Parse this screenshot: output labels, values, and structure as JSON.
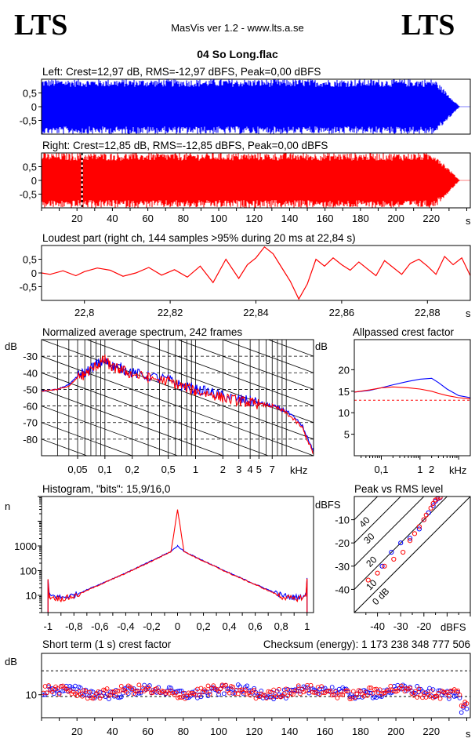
{
  "header": {
    "logo_left": "LTS",
    "logo_right": "LTS",
    "app_title": "MasVis ver 1.2 - www.lts.a.se",
    "file_name": "04 So Long.flac"
  },
  "colors": {
    "left": "#0000ff",
    "right": "#ff0000",
    "grid": "#000000",
    "bg": "#ffffff"
  },
  "chart_data": [
    {
      "id": "left-waveform",
      "type": "area",
      "title": "Left: Crest=12,97 dB, RMS=-12,97 dBFS, Peak=0,00 dBFS",
      "ylim": [
        -1,
        1
      ],
      "yticks": [
        "0.5",
        "0",
        "-0.5"
      ],
      "xlim": [
        0,
        242
      ],
      "color": "#0000ff",
      "envelope_peak": 1.0,
      "fade_out_start_s": 222,
      "fade_out_end_s": 236
    },
    {
      "id": "right-waveform",
      "type": "area",
      "title": "Right: Crest=12,85 dB, RMS=-12,85 dBFS, Peak=0,00 dBFS",
      "ylim": [
        -1,
        1
      ],
      "yticks": [
        "0.5",
        "0",
        "-0.5"
      ],
      "xlim": [
        0,
        242
      ],
      "xticks": [
        "20",
        "40",
        "60",
        "80",
        "100",
        "120",
        "140",
        "160",
        "180",
        "200",
        "220"
      ],
      "x_unit": "s",
      "color": "#ff0000",
      "marker_s": 22.84,
      "fade_out_start_s": 222,
      "fade_out_end_s": 236
    },
    {
      "id": "loudest-part",
      "type": "line",
      "title": "Loudest part (right ch, 144 samples >95% during 20 ms at 22,84 s)",
      "xlim": [
        22.79,
        22.89
      ],
      "xticks": [
        "22,8",
        "22,82",
        "22,84",
        "22,86",
        "22,88"
      ],
      "x_unit": "s",
      "ylim": [
        -1,
        1
      ],
      "yticks": [
        "0.5",
        "0",
        "-0.5"
      ],
      "color": "#ff0000",
      "points": [
        [
          22.79,
          0.0
        ],
        [
          22.792,
          -0.05
        ],
        [
          22.795,
          0.08
        ],
        [
          22.798,
          -0.1
        ],
        [
          22.8,
          0.05
        ],
        [
          22.803,
          0.18
        ],
        [
          22.806,
          0.1
        ],
        [
          22.809,
          -0.12
        ],
        [
          22.812,
          0.0
        ],
        [
          22.815,
          0.2
        ],
        [
          22.818,
          -0.08
        ],
        [
          22.821,
          0.12
        ],
        [
          22.824,
          -0.15
        ],
        [
          22.827,
          0.25
        ],
        [
          22.83,
          -0.35
        ],
        [
          22.833,
          0.5
        ],
        [
          22.836,
          -0.2
        ],
        [
          22.838,
          0.3
        ],
        [
          22.84,
          0.55
        ],
        [
          22.842,
          0.95
        ],
        [
          22.844,
          0.7
        ],
        [
          22.846,
          0.2
        ],
        [
          22.848,
          -0.3
        ],
        [
          22.85,
          -0.95
        ],
        [
          22.852,
          -0.4
        ],
        [
          22.854,
          0.5
        ],
        [
          22.856,
          0.25
        ],
        [
          22.858,
          0.55
        ],
        [
          22.86,
          0.3
        ],
        [
          22.862,
          0.1
        ],
        [
          22.864,
          0.4
        ],
        [
          22.866,
          0.15
        ],
        [
          22.868,
          -0.1
        ],
        [
          22.87,
          0.45
        ],
        [
          22.872,
          0.2
        ],
        [
          22.874,
          -0.05
        ],
        [
          22.876,
          0.35
        ],
        [
          22.878,
          0.5
        ],
        [
          22.88,
          0.25
        ],
        [
          22.882,
          -0.05
        ],
        [
          22.884,
          0.6
        ],
        [
          22.886,
          0.3
        ],
        [
          22.888,
          0.55
        ],
        [
          22.89,
          -0.1
        ]
      ]
    },
    {
      "id": "avg-spectrum",
      "type": "line",
      "title": "Normalized average spectrum, 242 frames",
      "ylabel": "dB",
      "x_unit": "kHz",
      "x_scale": "log",
      "xlim": [
        0.02,
        20
      ],
      "ylim": [
        -90,
        -20
      ],
      "yticks": [
        "-30",
        "-40",
        "-50",
        "-60",
        "-70",
        "-80"
      ],
      "xticks": [
        "0,05",
        "0,1",
        "0,2",
        "0,5",
        "1",
        "2",
        "3",
        "4",
        "5",
        "7"
      ],
      "series": [
        {
          "color": "#0000ff",
          "x": [
            0.02,
            0.03,
            0.04,
            0.05,
            0.06,
            0.08,
            0.1,
            0.12,
            0.15,
            0.2,
            0.3,
            0.5,
            0.7,
            1,
            1.5,
            2,
            3,
            4,
            5,
            7,
            10,
            15,
            20
          ],
          "y": [
            -51,
            -50,
            -47,
            -42,
            -40,
            -35,
            -33,
            -36,
            -37,
            -40,
            -42,
            -44,
            -48,
            -50,
            -52,
            -54,
            -56,
            -57,
            -58,
            -60,
            -63,
            -72,
            -88
          ]
        },
        {
          "color": "#ff0000",
          "x": [
            0.02,
            0.03,
            0.04,
            0.05,
            0.06,
            0.08,
            0.1,
            0.12,
            0.15,
            0.2,
            0.3,
            0.5,
            0.7,
            1,
            1.5,
            2,
            3,
            4,
            5,
            7,
            10,
            15,
            20
          ],
          "y": [
            -51,
            -50,
            -48,
            -43,
            -41,
            -36,
            -32,
            -37,
            -38,
            -41,
            -43,
            -45,
            -48,
            -51,
            -53,
            -55,
            -57,
            -58,
            -59,
            -60,
            -64,
            -73,
            -89
          ]
        }
      ]
    },
    {
      "id": "allpass-crest",
      "type": "line",
      "title": "Allpassed crest factor",
      "ylabel": "dB",
      "x_unit": "kHz",
      "x_scale": "log",
      "xlim": [
        0.02,
        20
      ],
      "ylim": [
        0,
        27
      ],
      "yticks": [
        "20",
        "15",
        "10",
        "5"
      ],
      "xticks": [
        "0,1",
        "1",
        "2"
      ],
      "reference_db": 12.9,
      "series": [
        {
          "color": "#0000ff",
          "x": [
            0.02,
            0.05,
            0.1,
            0.2,
            0.5,
            1,
            2,
            3,
            5,
            10,
            20
          ],
          "y": [
            14.8,
            15.2,
            15.8,
            16.5,
            17.3,
            17.8,
            18.0,
            17.0,
            15.5,
            14.0,
            13.5
          ]
        },
        {
          "color": "#ff0000",
          "x": [
            0.02,
            0.05,
            0.1,
            0.2,
            0.5,
            1,
            2,
            3,
            5,
            10,
            20
          ],
          "y": [
            14.8,
            15.3,
            15.8,
            16.0,
            15.8,
            15.5,
            15.0,
            14.5,
            14.0,
            13.5,
            13.2
          ]
        }
      ]
    },
    {
      "id": "histogram",
      "type": "line",
      "title": "Histogram, \"bits\": 15,9/16,0",
      "ylabel": "n",
      "y_scale": "log",
      "xlim": [
        -1.05,
        1.05
      ],
      "ylim": [
        2,
        100000
      ],
      "xticks": [
        "-1",
        "-0,8",
        "-0,6",
        "-0,4",
        "-0,2",
        "0",
        "0,2",
        "0,4",
        "0,6",
        "0,8",
        "1"
      ],
      "yticks": [
        "1000",
        "100",
        "10"
      ],
      "series": [
        {
          "color": "#0000ff",
          "x": [
            -1,
            -0.99,
            -0.9,
            -0.8,
            -0.6,
            -0.4,
            -0.2,
            -0.05,
            0,
            0.05,
            0.2,
            0.4,
            0.6,
            0.8,
            0.9,
            0.99,
            1
          ],
          "y": [
            40,
            10,
            8,
            10,
            28,
            80,
            250,
            600,
            1000,
            600,
            250,
            80,
            28,
            10,
            8,
            10,
            40
          ]
        },
        {
          "color": "#ff0000",
          "x": [
            -1,
            -0.99,
            -0.9,
            -0.8,
            -0.6,
            -0.4,
            -0.2,
            -0.05,
            0,
            0.05,
            0.2,
            0.4,
            0.6,
            0.8,
            0.9,
            0.99,
            1
          ],
          "y": [
            45,
            9,
            7,
            9,
            27,
            78,
            240,
            590,
            30000,
            590,
            240,
            78,
            27,
            9,
            7,
            9,
            45
          ]
        }
      ]
    },
    {
      "id": "peak-vs-rms",
      "type": "scatter",
      "title": "Peak vs RMS level",
      "ylabel": "dBFS",
      "x_unit": "dBFS",
      "xlim": [
        -50,
        0
      ],
      "ylim": [
        -50,
        0
      ],
      "xticks": [
        "-40",
        "-30",
        "-20"
      ],
      "yticks": [
        "-10",
        "-20",
        "-30",
        "-40"
      ],
      "diagonals": [
        "40",
        "30",
        "20",
        "10",
        "0 dB"
      ],
      "series": [
        {
          "color": "#0000ff",
          "points": [
            [
              -38,
              -30
            ],
            [
              -34,
              -24
            ],
            [
              -30,
              -20
            ],
            [
              -26,
              -18
            ],
            [
              -22,
              -14
            ],
            [
              -20,
              -10
            ],
            [
              -18,
              -7
            ],
            [
              -16,
              -4
            ],
            [
              -15,
              -2
            ],
            [
              -14,
              -1
            ],
            [
              -13,
              -0.5
            ]
          ]
        },
        {
          "color": "#ff0000",
          "points": [
            [
              -44,
              -36
            ],
            [
              -40,
              -33
            ],
            [
              -37,
              -30
            ],
            [
              -33,
              -27
            ],
            [
              -29,
              -24
            ],
            [
              -26,
              -19
            ],
            [
              -24,
              -16
            ],
            [
              -22,
              -13
            ],
            [
              -20,
              -10
            ],
            [
              -19,
              -8
            ],
            [
              -17,
              -5
            ],
            [
              -16,
              -3
            ],
            [
              -15,
              -1.5
            ],
            [
              -14,
              -0.8
            ],
            [
              -13,
              -0.3
            ]
          ]
        }
      ]
    },
    {
      "id": "short-term-crest",
      "type": "scatter",
      "title": "Short term (1 s) crest factor",
      "checksum": "Checksum (energy):  1 173 238 348 777 506",
      "ylabel": "dB",
      "xlim": [
        0,
        242
      ],
      "ylim": [
        5,
        19
      ],
      "yticks": [
        "10"
      ],
      "ref_lines": [
        15.2,
        9.6
      ],
      "xticks": [
        "20",
        "40",
        "60",
        "80",
        "100",
        "120",
        "140",
        "160",
        "180",
        "200",
        "220"
      ],
      "x_unit": "s"
    }
  ]
}
